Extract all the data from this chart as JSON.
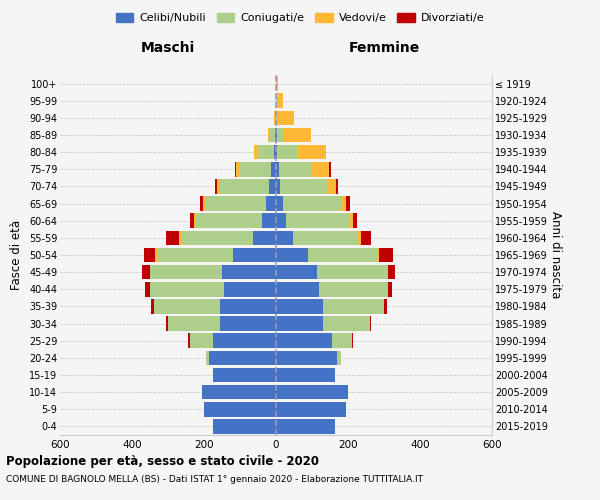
{
  "age_groups": [
    "0-4",
    "5-9",
    "10-14",
    "15-19",
    "20-24",
    "25-29",
    "30-34",
    "35-39",
    "40-44",
    "45-49",
    "50-54",
    "55-59",
    "60-64",
    "65-69",
    "70-74",
    "75-79",
    "80-84",
    "85-89",
    "90-94",
    "95-99",
    "100+"
  ],
  "birth_years": [
    "2015-2019",
    "2010-2014",
    "2005-2009",
    "2000-2004",
    "1995-1999",
    "1990-1994",
    "1985-1989",
    "1980-1984",
    "1975-1979",
    "1970-1974",
    "1965-1969",
    "1960-1964",
    "1955-1959",
    "1950-1954",
    "1945-1949",
    "1940-1944",
    "1935-1939",
    "1930-1934",
    "1925-1929",
    "1920-1924",
    "≤ 1919"
  ],
  "maschi": {
    "celibi": [
      175,
      200,
      205,
      175,
      185,
      175,
      155,
      155,
      145,
      150,
      120,
      65,
      38,
      28,
      20,
      15,
      5,
      2,
      1,
      0,
      0
    ],
    "coniugati": [
      0,
      0,
      0,
      0,
      10,
      65,
      145,
      185,
      205,
      200,
      210,
      200,
      185,
      170,
      135,
      85,
      45,
      15,
      3,
      1,
      0
    ],
    "vedovi": [
      0,
      0,
      0,
      0,
      0,
      0,
      0,
      0,
      0,
      0,
      5,
      5,
      5,
      5,
      10,
      10,
      12,
      5,
      2,
      0,
      0
    ],
    "divorziati": [
      0,
      0,
      0,
      0,
      0,
      5,
      5,
      8,
      15,
      22,
      32,
      35,
      12,
      8,
      5,
      5,
      0,
      0,
      0,
      0,
      0
    ]
  },
  "femmine": {
    "nubili": [
      165,
      195,
      200,
      165,
      170,
      155,
      130,
      130,
      120,
      115,
      90,
      48,
      28,
      20,
      12,
      8,
      4,
      2,
      1,
      0,
      0
    ],
    "coniugate": [
      0,
      0,
      0,
      0,
      10,
      55,
      130,
      170,
      190,
      195,
      190,
      180,
      175,
      160,
      130,
      90,
      55,
      20,
      5,
      2,
      0
    ],
    "vedove": [
      0,
      0,
      0,
      0,
      0,
      0,
      0,
      0,
      0,
      0,
      5,
      8,
      10,
      15,
      25,
      50,
      80,
      75,
      45,
      18,
      5
    ],
    "divorziate": [
      0,
      0,
      0,
      0,
      0,
      5,
      5,
      8,
      12,
      20,
      40,
      28,
      12,
      10,
      5,
      5,
      0,
      0,
      0,
      0,
      0
    ]
  },
  "colors": {
    "celibi": "#4472C4",
    "coniugati": "#AECF8B",
    "vedovi": "#FFB833",
    "divorziati": "#C00000"
  },
  "title": "Popolazione per età, sesso e stato civile - 2020",
  "subtitle": "COMUNE DI BAGNOLO MELLA (BS) - Dati ISTAT 1° gennaio 2020 - Elaborazione TUTTITALIA.IT",
  "xlabel_left": "Maschi",
  "xlabel_right": "Femmine",
  "ylabel": "Fasce di età",
  "ylabel_right": "Anni di nascita",
  "xlim": 600,
  "bg_color": "#f5f5f5",
  "grid_color": "#cccccc"
}
